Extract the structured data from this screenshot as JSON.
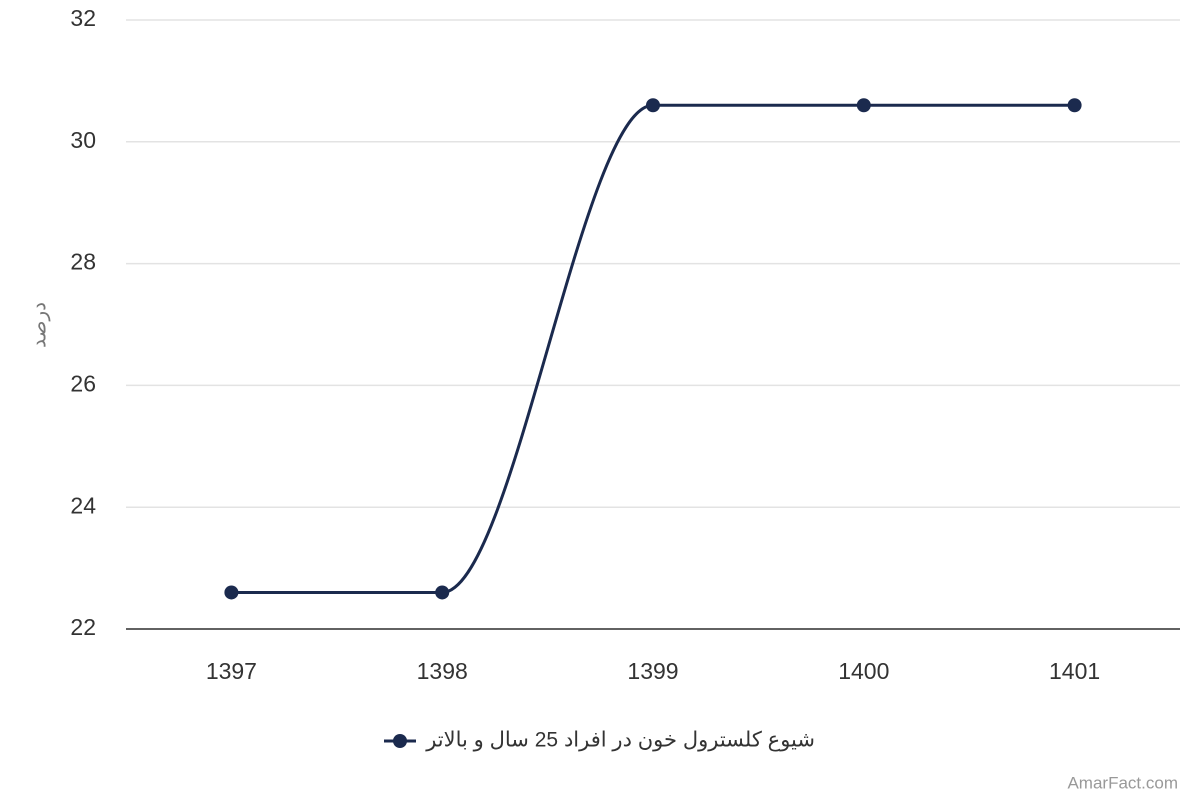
{
  "chart_data": {
    "type": "line",
    "ylabel": "درصد",
    "categories": [
      "1397",
      "1398",
      "1399",
      "1400",
      "1401"
    ],
    "series": [
      {
        "name": "شیوع کلسترول خون در افراد 25 سال و بالاتر",
        "color": "#1b2a4e",
        "values": [
          22.6,
          22.6,
          30.6,
          30.6,
          30.6
        ]
      }
    ],
    "ylim": [
      22,
      32
    ],
    "yticks": [
      22,
      24,
      26,
      28,
      30,
      32
    ],
    "grid": true,
    "smooth": true,
    "credit": "AmarFact.com"
  }
}
